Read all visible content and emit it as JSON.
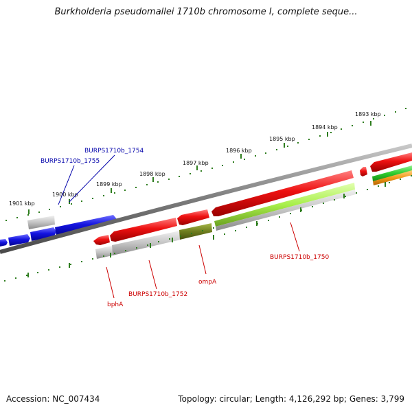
{
  "title": "Burkholderia pseudomallei 1710b chromosome I, complete seque...",
  "accession": "Accession: NC_007434",
  "topology": "Topology: circular; Length: 4,126,292 bp; Genes: 3,799",
  "kbp_labels": [
    "1893 kbp",
    "1894 kbp",
    "1895 kbp",
    "1896 kbp",
    "1897 kbp",
    "1898 kbp",
    "1899 kbp",
    "1900 kbp",
    "1901 kbp"
  ],
  "gene_labels": {
    "top": [
      "BURPS1710b_1754",
      "BURPS1710b_1755"
    ],
    "bottom": [
      "BURPS1710b_1750",
      "ompA",
      "BURPS1710b_1752",
      "bphA"
    ]
  },
  "colors": {
    "forward_gene": "#1414e0",
    "reverse_gene": "#e60f0f",
    "label_top": "#0000aa",
    "label_bottom": "#cc0000",
    "tick": "#2e7d1e",
    "backbone": "#8a8a8a",
    "green_feature": "#a8ef4a",
    "olive_feature": "#7a8a22",
    "orange_feature": "#f29a1a",
    "grey_feature": "#bdbdbd"
  }
}
